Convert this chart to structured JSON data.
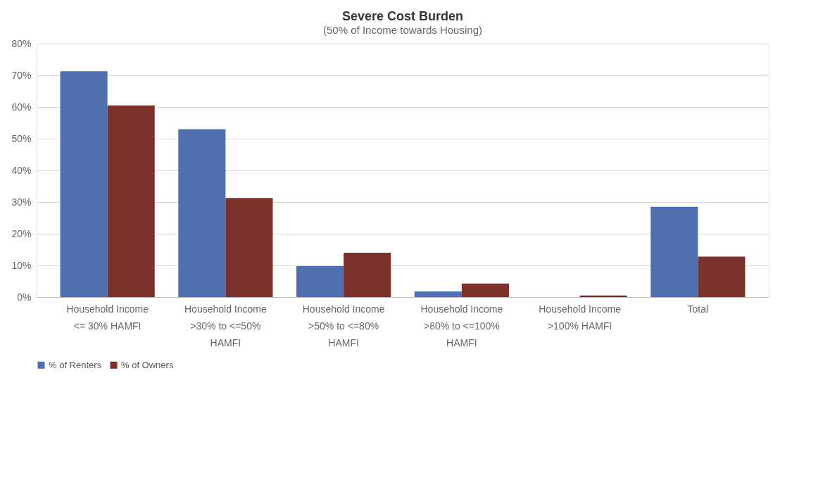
{
  "chart_data": {
    "type": "bar",
    "title": "Severe Cost Burden",
    "subtitle": "(50% of Income towards Housing)",
    "categories": [
      "Household Income <= 30% HAMFI",
      "Household Income >30% to <=50% HAMFI",
      "Household Income >50% to <=80% HAMFI",
      "Household Income >80% to <=100% HAMFI",
      "Household Income >100% HAMFI",
      "Total"
    ],
    "series": [
      {
        "name": "% of Renters",
        "color": "#4f6fae",
        "values": [
          71.3,
          53.0,
          9.8,
          1.8,
          0,
          28.5
        ]
      },
      {
        "name": "% of Owners",
        "color": "#7a322a",
        "values": [
          60.5,
          31.3,
          14.0,
          4.3,
          0.5,
          12.8
        ]
      }
    ],
    "ylim": [
      0,
      80
    ],
    "yticks": [
      {
        "value": 0,
        "label": "0%"
      },
      {
        "value": 10,
        "label": "10%"
      },
      {
        "value": 20,
        "label": "20%"
      },
      {
        "value": 30,
        "label": "30%"
      },
      {
        "value": 40,
        "label": "40%"
      },
      {
        "value": 50,
        "label": "50%"
      },
      {
        "value": 60,
        "label": "60%"
      },
      {
        "value": 70,
        "label": "70%"
      },
      {
        "value": 80,
        "label": "80%"
      }
    ],
    "grid": "y",
    "legend": "bottom"
  }
}
